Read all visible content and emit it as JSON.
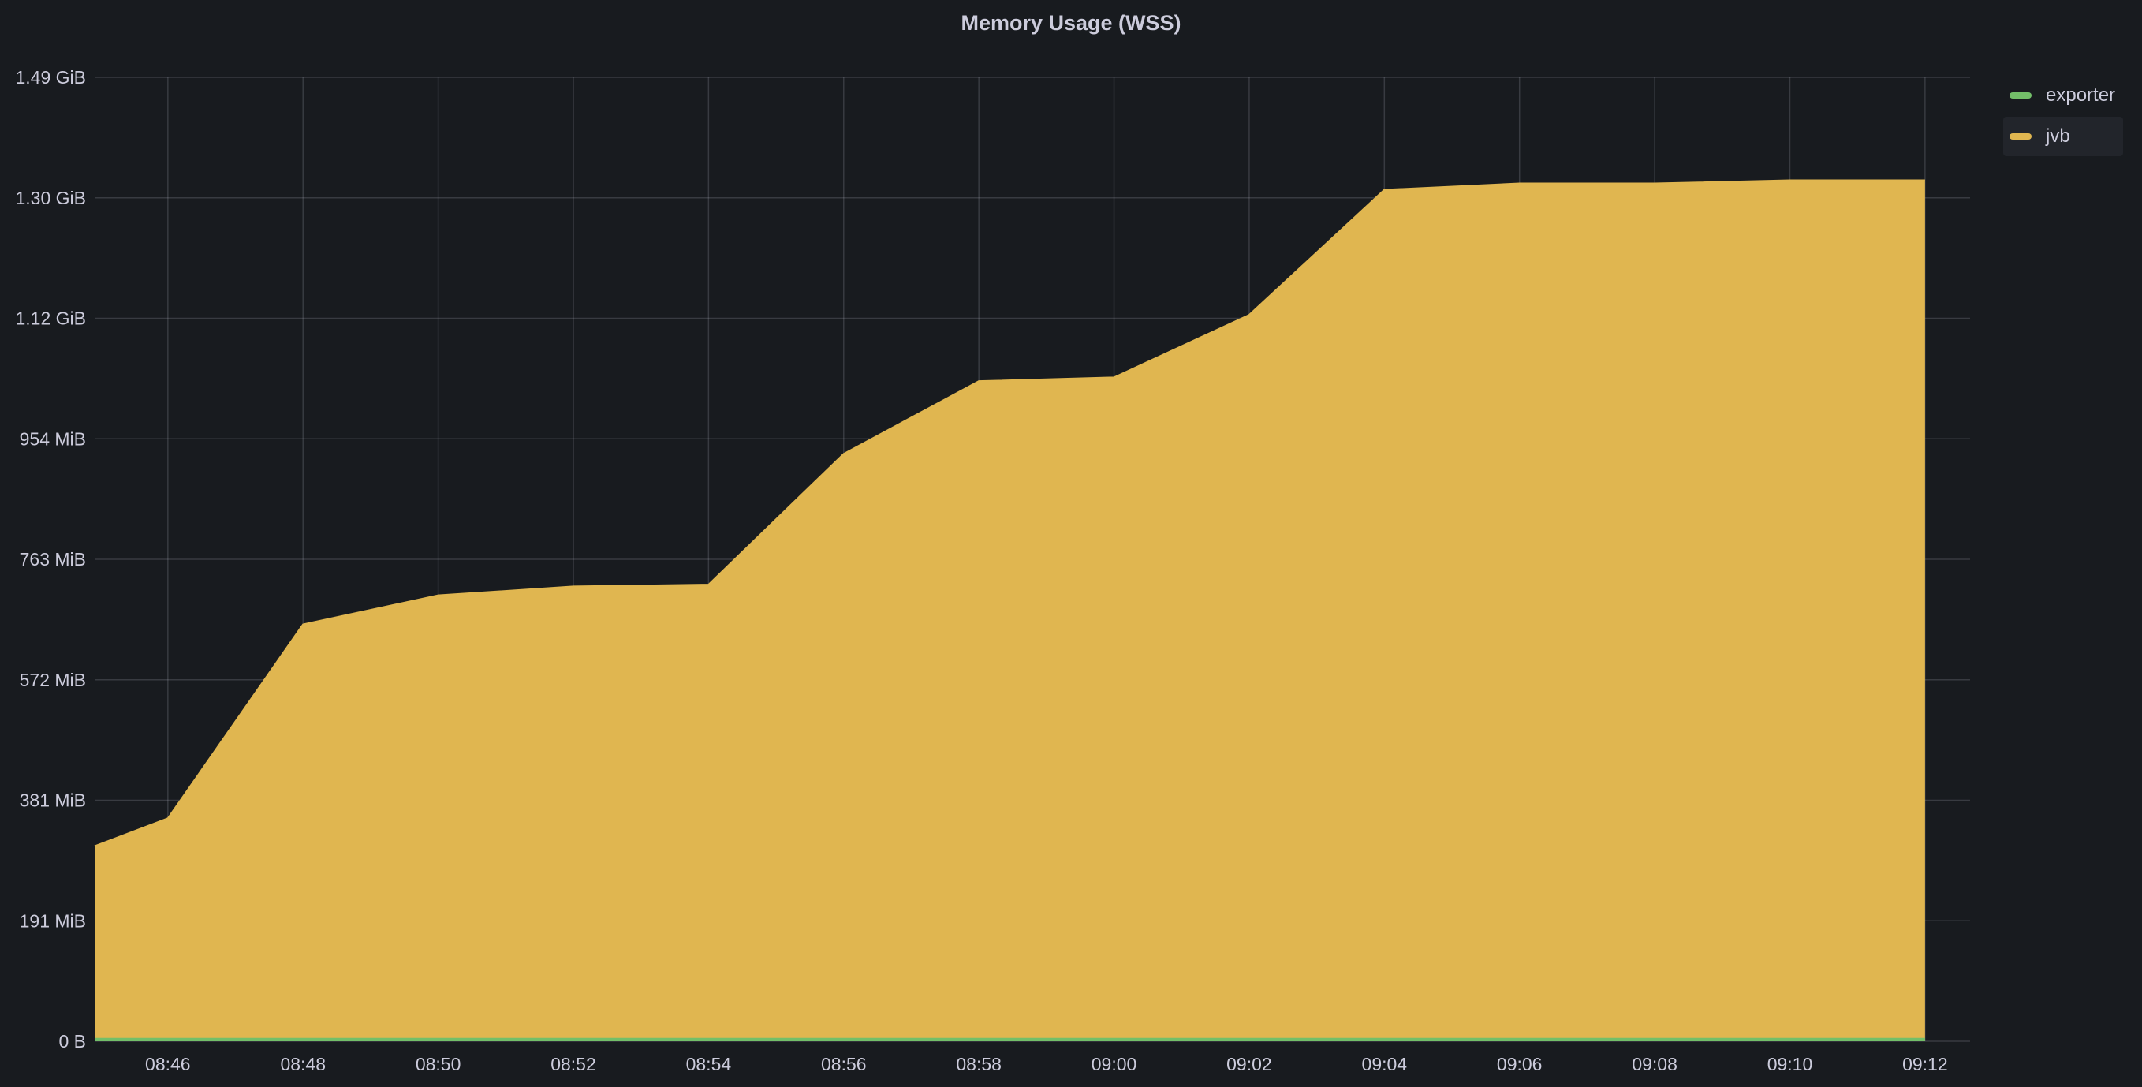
{
  "panel": {
    "title": "Memory Usage (WSS)"
  },
  "legend": [
    {
      "name": "exporter",
      "color": "#73bf69"
    },
    {
      "name": "jvb",
      "color": "#e0b650"
    }
  ],
  "chart_data": {
    "type": "area",
    "title": "Memory Usage (WSS)",
    "xlabel": "",
    "ylabel": "",
    "x_ticks": [
      "08:46",
      "08:48",
      "08:50",
      "08:52",
      "08:54",
      "08:56",
      "08:58",
      "09:00",
      "09:02",
      "09:04",
      "09:06",
      "09:08",
      "09:10",
      "09:12"
    ],
    "y_ticks": [
      "0 B",
      "191 MiB",
      "381 MiB",
      "572 MiB",
      "763 MiB",
      "954 MiB",
      "1.12 GiB",
      "1.30 GiB",
      "1.49 GiB"
    ],
    "y_unit": "MiB",
    "ylim": [
      0,
      1526
    ],
    "xlim": [
      "08:44:55",
      "09:12:40"
    ],
    "grid": true,
    "legend_position": "right",
    "series": [
      {
        "name": "jvb",
        "color": "#e0b650",
        "x": [
          "08:44:55",
          "08:46:00",
          "08:48:00",
          "08:50:00",
          "08:52:00",
          "08:54:00",
          "08:56:00",
          "08:58:00",
          "09:00:00",
          "09:02:00",
          "09:04:00",
          "09:06:00",
          "09:08:00",
          "09:10:00",
          "09:12:00"
        ],
        "y": [
          309,
          353,
          660,
          706,
          720,
          723,
          930,
          1045,
          1051,
          1150,
          1348,
          1358,
          1358,
          1363,
          1363
        ]
      },
      {
        "name": "exporter",
        "color": "#73bf69",
        "x": [
          "08:44:55",
          "08:46:00",
          "08:48:00",
          "08:50:00",
          "08:52:00",
          "08:54:00",
          "08:56:00",
          "08:58:00",
          "09:00:00",
          "09:02:00",
          "09:04:00",
          "09:06:00",
          "09:08:00",
          "09:10:00",
          "09:12:00"
        ],
        "y": [
          4,
          4,
          4,
          4,
          4,
          4,
          4,
          4,
          4,
          4,
          4,
          4,
          4,
          4,
          4
        ]
      }
    ]
  }
}
